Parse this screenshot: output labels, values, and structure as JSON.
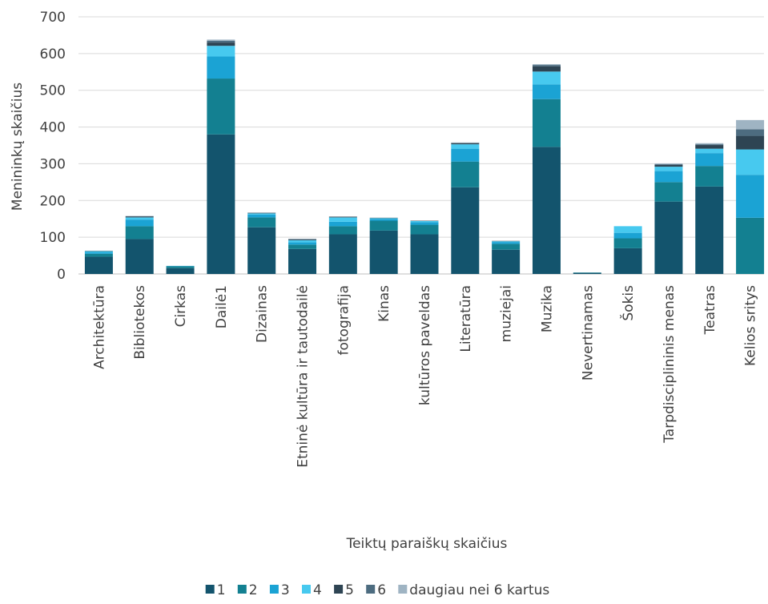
{
  "chart_data": {
    "type": "bar",
    "stacked": true,
    "title": "",
    "xlabel": "Teiktų paraiškų skaičius",
    "ylabel": "Menininkų skaičius",
    "ylim": [
      0,
      700
    ],
    "yticks": [
      0,
      100,
      200,
      300,
      400,
      500,
      600,
      700
    ],
    "grid": true,
    "legend_position": "bottom",
    "categories": [
      "Architektūra",
      "Bibliotekos",
      "Cirkas",
      "Dailė1",
      "Dizainas",
      "Etninė kultūra ir tautodailė",
      "fotografija",
      "Kinas",
      "kultūros paveldas",
      "Literatūra",
      "muziejai",
      "Muzika",
      "Nevertinamas",
      "Šokis",
      "Tarpdisciplininis menas",
      "Teatras",
      "Kelios sritys"
    ],
    "series": [
      {
        "name": "1",
        "color": "#13546d",
        "values": [
          47,
          95,
          16,
          380,
          127,
          68,
          108,
          118,
          108,
          236,
          66,
          346,
          3,
          70,
          197,
          238,
          0
        ]
      },
      {
        "name": "2",
        "color": "#138091",
        "values": [
          8,
          35,
          5,
          152,
          27,
          12,
          22,
          27,
          26,
          70,
          16,
          130,
          1,
          27,
          53,
          56,
          153
        ]
      },
      {
        "name": "3",
        "color": "#1ba3d4",
        "values": [
          4,
          18,
          1,
          60,
          8,
          6,
          12,
          5,
          7,
          35,
          5,
          40,
          0,
          15,
          30,
          35,
          117
        ]
      },
      {
        "name": "4",
        "color": "#47c9ef",
        "values": [
          3,
          6,
          0,
          29,
          3,
          6,
          12,
          2,
          3,
          12,
          2,
          35,
          0,
          18,
          12,
          12,
          69
        ]
      },
      {
        "name": "5",
        "color": "#2e4453",
        "values": [
          1,
          2,
          0,
          9,
          1,
          2,
          2,
          1,
          1,
          3,
          1,
          14,
          0,
          0,
          5,
          10,
          37
        ]
      },
      {
        "name": "6",
        "color": "#4d6c80",
        "values": [
          0,
          1,
          0,
          5,
          1,
          1,
          0,
          0,
          0,
          1,
          0,
          4,
          0,
          0,
          2,
          2,
          18
        ]
      },
      {
        "name": "daugiau nei 6 kartus",
        "color": "#9fb4c3",
        "values": [
          0,
          1,
          0,
          3,
          0,
          1,
          0,
          0,
          0,
          1,
          0,
          2,
          0,
          0,
          2,
          3,
          25
        ]
      }
    ]
  }
}
